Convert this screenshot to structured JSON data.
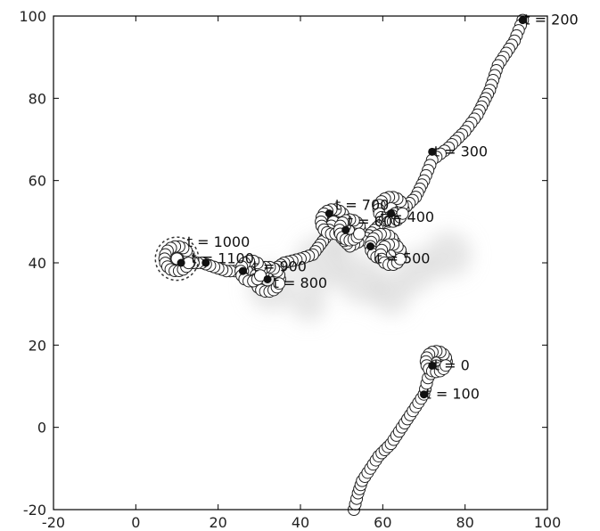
{
  "chart_data": {
    "type": "scatter",
    "xlim": [
      -20,
      100
    ],
    "ylim": [
      -20,
      100
    ],
    "xticks": [
      -20,
      0,
      20,
      40,
      60,
      80,
      100
    ],
    "yticks": [
      -20,
      0,
      20,
      40,
      60,
      80,
      100
    ],
    "grid": false,
    "legend": "none",
    "path": [
      [
        53,
        -20
      ],
      [
        55,
        -13
      ],
      [
        58,
        -8
      ],
      [
        62,
        -4
      ],
      [
        65,
        0
      ],
      [
        68,
        4
      ],
      [
        70,
        8
      ],
      [
        72,
        12
      ],
      [
        74,
        16
      ],
      [
        70,
        8
      ],
      [
        68,
        4
      ],
      [
        70,
        8
      ],
      [
        73,
        14
      ],
      [
        53,
        -20
      ]
    ],
    "trajectory": [
      [
        53,
        -20
      ],
      [
        54,
        -16
      ],
      [
        55,
        -13
      ],
      [
        57,
        -10
      ],
      [
        59,
        -7
      ],
      [
        62,
        -4
      ],
      [
        64,
        -1
      ],
      [
        66,
        2
      ],
      [
        68,
        5
      ],
      [
        70,
        8
      ],
      [
        71,
        12
      ],
      [
        73,
        15
      ],
      [
        75,
        17
      ],
      [
        73,
        18
      ],
      [
        71,
        17
      ],
      [
        71,
        15
      ],
      [
        73,
        14
      ],
      [
        74,
        16
      ],
      [
        72,
        17
      ]
    ],
    "annotations": [
      {
        "text": "t = 0",
        "x": 72,
        "y": 15
      },
      {
        "text": "t = 100",
        "x": 70,
        "y": 8
      },
      {
        "text": "t = 200",
        "x": 94,
        "y": 99
      },
      {
        "text": "t = 300",
        "x": 72,
        "y": 67
      },
      {
        "text": "t = 400",
        "x": 59,
        "y": 51
      },
      {
        "text": "t = 500",
        "x": 58,
        "y": 41
      },
      {
        "text": "t = 600",
        "x": 51,
        "y": 50
      },
      {
        "text": "t = 700",
        "x": 48,
        "y": 54
      },
      {
        "text": "t = 800",
        "x": 33,
        "y": 35
      },
      {
        "text": "t = 900",
        "x": 28,
        "y": 39
      },
      {
        "text": "t = 1000",
        "x": 12,
        "y": 45
      },
      {
        "text": "t = 1100",
        "x": 13,
        "y": 41
      }
    ],
    "filled_markers": [
      [
        72,
        15
      ],
      [
        70,
        8
      ],
      [
        94,
        99
      ],
      [
        72,
        67
      ],
      [
        62,
        52
      ],
      [
        57,
        44
      ],
      [
        51,
        48
      ],
      [
        32,
        36
      ],
      [
        26,
        38
      ],
      [
        11,
        40
      ],
      [
        17,
        40
      ],
      [
        47,
        52
      ]
    ],
    "dashed_circle": {
      "x": 10,
      "y": 41,
      "r": 5
    }
  }
}
